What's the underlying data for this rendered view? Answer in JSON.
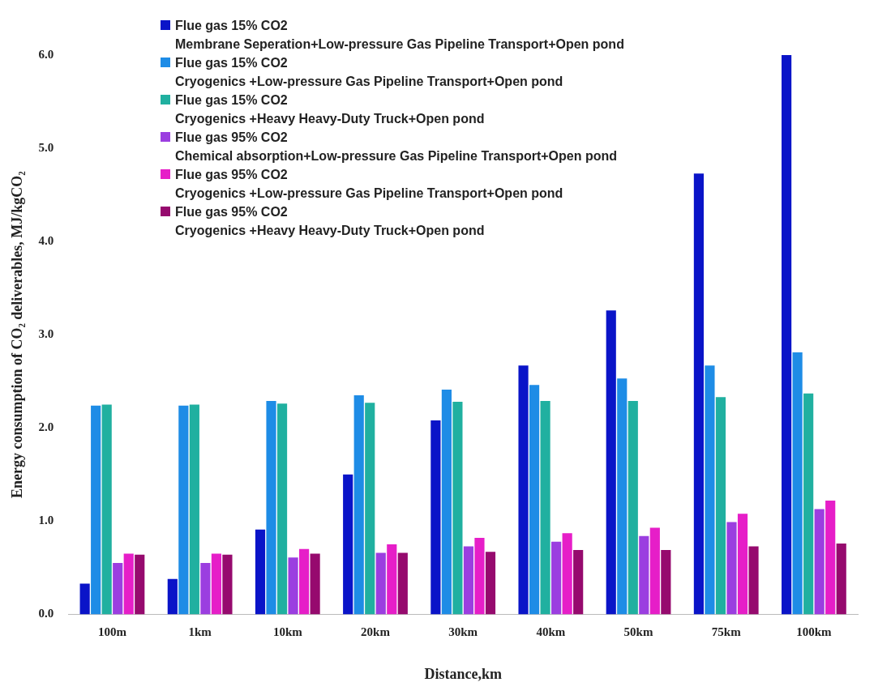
{
  "chart_data": {
    "type": "bar",
    "xlabel": "Distance,km",
    "ylabel": "Energy consumption of CO₂ deliverables, MJ/kgCO₂",
    "categories": [
      "100m",
      "1km",
      "10km",
      "20km",
      "30km",
      "40km",
      "50km",
      "75km",
      "100km"
    ],
    "series": [
      {
        "name": "Flue gas  15% CO2\nMembrane  Seperation+Low-pressure Gas Pipeline Transport+Open pond",
        "color": "#0a14c8",
        "values": [
          0.33,
          0.38,
          0.91,
          1.5,
          2.08,
          2.67,
          3.26,
          4.73,
          6.0
        ]
      },
      {
        "name": "Flue gas  15% CO2\nCryogenics +Low-pressure Gas Pipeline Transport+Open pond",
        "color": "#1e8ce6",
        "values": [
          2.24,
          2.24,
          2.29,
          2.35,
          2.41,
          2.46,
          2.53,
          2.67,
          2.81
        ]
      },
      {
        "name": "Flue gas  15% CO2\nCryogenics +Heavy Heavy-Duty Truck+Open pond",
        "color": "#20b0a0",
        "values": [
          2.25,
          2.25,
          2.26,
          2.27,
          2.28,
          2.29,
          2.29,
          2.33,
          2.37
        ]
      },
      {
        "name": "Flue gas  95% CO2\nChemical absorption+Low-pressure Gas Pipeline Transport+Open pond",
        "color": "#9b3ee0",
        "values": [
          0.55,
          0.55,
          0.61,
          0.66,
          0.73,
          0.78,
          0.84,
          0.99,
          1.13
        ]
      },
      {
        "name": "Flue gas  95% CO2\nCryogenics +Low-pressure Gas Pipeline Transport+Open pond",
        "color": "#e61ec8",
        "values": [
          0.65,
          0.65,
          0.7,
          0.75,
          0.82,
          0.87,
          0.93,
          1.08,
          1.22
        ]
      },
      {
        "name": "Flue gas  95% CO2\nCryogenics +Heavy Heavy-Duty Truck+Open pond",
        "color": "#960a6e",
        "values": [
          0.64,
          0.64,
          0.65,
          0.66,
          0.67,
          0.69,
          0.69,
          0.73,
          0.76
        ]
      }
    ],
    "ylim": [
      0,
      6
    ],
    "yticks": [
      {
        "value": 0,
        "label": "0.0"
      },
      {
        "value": 1,
        "label": "1.0"
      },
      {
        "value": 2,
        "label": "2.0"
      },
      {
        "value": 3,
        "label": "3.0"
      },
      {
        "value": 4,
        "label": "4.0"
      },
      {
        "value": 5,
        "label": "5.0"
      },
      {
        "value": 6,
        "label": "6.0"
      }
    ],
    "grid": false,
    "legend": "top left"
  }
}
